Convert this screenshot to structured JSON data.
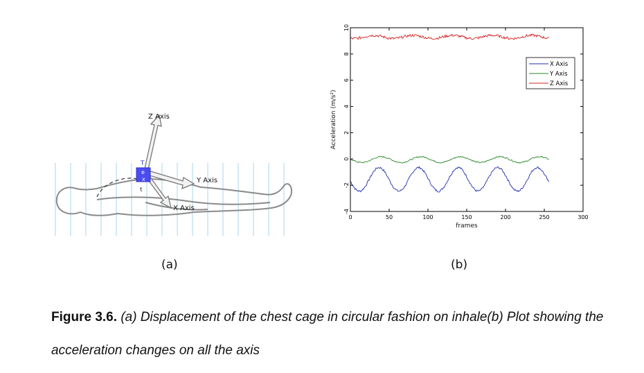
{
  "diagram": {
    "z_axis_label": "Z Axis",
    "y_axis_label": "Y Axis",
    "x_axis_label": "X Axis",
    "sensor_letters": [
      "T",
      "e",
      "x",
      "t"
    ]
  },
  "labels": {
    "a": "(a)",
    "b": "(b)"
  },
  "caption": {
    "figure": "Figure 3.6.",
    "text": "(a) Displacement of the chest cage in circular fashion on inhale(b) Plot showing the acceleration changes on all the axis"
  },
  "colors": {
    "x_series": "#1f2fa8",
    "y_series": "#2a8a2a",
    "z_series": "#d42020",
    "sensor": "#4a4cf0"
  },
  "chart_data": {
    "type": "line",
    "title": "",
    "xlabel": "frames",
    "ylabel": "Acceleration (m/s²)",
    "xlim": [
      0,
      300
    ],
    "ylim": [
      -4,
      10
    ],
    "xticks": [
      0,
      50,
      100,
      150,
      200,
      250,
      300
    ],
    "yticks": [
      -4,
      -2,
      0,
      2,
      4,
      6,
      8,
      10
    ],
    "legend_position": "top-right",
    "frames": 256,
    "series": [
      {
        "name": "X Axis",
        "color": "#1f2fa8",
        "mean": -1.55,
        "amplitude": 0.9,
        "period": 51,
        "peak_frame": 37,
        "noise": 0.08
      },
      {
        "name": "Y Axis",
        "color": "#2a8a2a",
        "mean": -0.05,
        "amplitude": 0.22,
        "period": 51,
        "peak_frame": 40,
        "noise": 0.05
      },
      {
        "name": "Z Axis",
        "color": "#d42020",
        "mean": 9.3,
        "amplitude": 0.12,
        "period": 51,
        "peak_frame": 30,
        "noise": 0.1
      }
    ]
  }
}
